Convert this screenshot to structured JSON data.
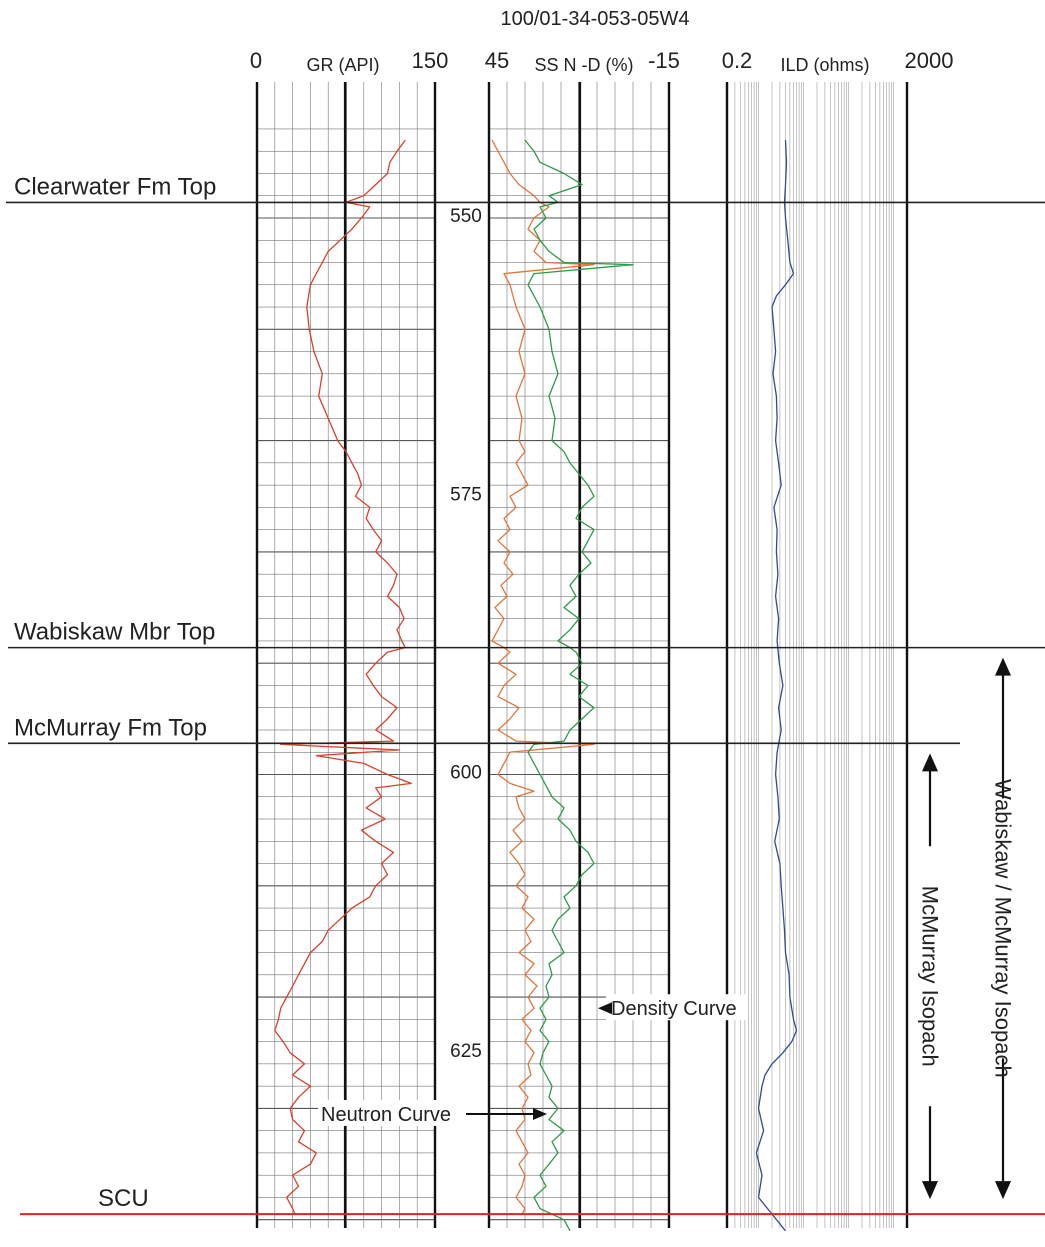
{
  "chart_data": {
    "type": "line",
    "title": "100/01-34-053-05W4",
    "depth_ticks": [
      550,
      575,
      600,
      625
    ],
    "depth_range": [
      542,
      644
    ],
    "tracks": {
      "gr": {
        "label": "GR (API)",
        "scale_min_label": "0",
        "scale_max_label": "150",
        "range": [
          0,
          150
        ]
      },
      "porosity": {
        "label": "SS N -D (%)",
        "scale_left_label": "45",
        "scale_right_label": "-15",
        "range": [
          45,
          -15
        ]
      },
      "resistivity": {
        "label": "ILD (ohms)",
        "scale_min_label": "0.2",
        "scale_max_label": "2000",
        "range": [
          0.2,
          2000
        ],
        "scale": "log"
      }
    },
    "formation_tops": [
      {
        "label": "Clearwater Fm Top",
        "depth": 548.6
      },
      {
        "label": "Wabiskaw Mbr Top",
        "depth": 588.6
      },
      {
        "label": "McMurray Fm Top",
        "depth": 597.2
      },
      {
        "label": "SCU",
        "depth": 639.5
      }
    ],
    "isopachs": [
      {
        "label": "McMurray Isopach",
        "from_depth": 597.2,
        "to_depth": 639.5
      },
      {
        "label": "Wabiskaw / McMurray Isopach",
        "from_depth": 588.6,
        "to_depth": 639.5
      }
    ],
    "annotations": [
      {
        "label": "Density Curve",
        "depth": 621,
        "value": 10
      },
      {
        "label": "Neutron Curve",
        "depth": 630.5,
        "value": 25
      }
    ],
    "series": [
      {
        "name": "GR",
        "track": "gr",
        "color": "#d9412b",
        "depth": [
          543,
          544,
          545,
          546,
          547,
          548,
          548.6,
          549,
          550,
          551,
          552,
          553,
          554,
          555,
          556,
          558,
          560,
          562,
          564,
          566,
          568,
          570,
          571,
          572,
          573,
          574,
          575,
          576,
          577,
          578,
          579,
          580,
          581,
          582,
          583,
          584,
          585,
          586,
          587,
          588,
          588.6,
          589,
          590,
          591,
          592,
          593,
          594,
          595,
          596,
          597,
          597.3,
          597.8,
          598.3,
          599,
          600,
          600.8,
          601.2,
          602,
          603,
          604,
          605,
          606,
          607,
          608,
          609,
          610,
          611,
          612,
          613,
          614,
          615,
          616,
          617,
          618,
          619,
          620,
          621,
          622,
          623,
          624,
          625,
          626,
          627,
          628,
          629,
          630,
          631,
          632,
          633,
          634,
          635,
          636,
          637,
          638,
          639,
          639.5
        ],
        "values": [
          125,
          118,
          112,
          110,
          100,
          90,
          75,
          95,
          88,
          80,
          70,
          60,
          55,
          50,
          45,
          42,
          44,
          48,
          55,
          52,
          60,
          68,
          75,
          80,
          85,
          88,
          83,
          95,
          92,
          98,
          105,
          100,
          110,
          118,
          115,
          110,
          120,
          124,
          118,
          122,
          125,
          110,
          100,
          92,
          98,
          105,
          118,
          110,
          100,
          115,
          20,
          120,
          50,
          90,
          110,
          130,
          100,
          105,
          92,
          108,
          88,
          100,
          115,
          105,
          110,
          100,
          95,
          80,
          70,
          60,
          55,
          45,
          40,
          35,
          30,
          25,
          20,
          18,
          15,
          22,
          28,
          40,
          30,
          45,
          35,
          28,
          30,
          40,
          35,
          50,
          45,
          30,
          35,
          25,
          30,
          32
        ]
      },
      {
        "name": "Neutron",
        "track": "porosity",
        "color": "#e3753a",
        "depth": [
          543,
          544,
          545,
          546,
          547,
          548,
          548.6,
          549,
          550,
          551,
          552,
          553,
          554,
          554.2,
          555,
          556,
          558,
          560,
          562,
          564,
          566,
          568,
          570,
          571,
          572,
          573,
          574,
          575,
          576,
          577,
          578,
          579,
          580,
          581,
          582,
          583,
          584,
          585,
          586,
          587,
          588,
          588.6,
          589,
          590,
          591,
          592,
          593,
          594,
          595,
          596,
          597,
          597.3,
          598,
          599,
          600,
          600.8,
          601.5,
          602,
          603,
          604,
          605,
          606,
          607,
          608,
          609,
          610,
          611,
          612,
          613,
          614,
          615,
          616,
          617,
          618,
          619,
          620,
          621,
          622,
          623,
          624,
          625,
          626,
          627,
          628,
          629,
          630,
          631,
          632,
          633,
          634,
          635,
          636,
          637,
          638,
          639,
          639.5
        ],
        "values": [
          44,
          42,
          40,
          38,
          35,
          30,
          28,
          25,
          30,
          32,
          28,
          30,
          26,
          10,
          40,
          38,
          36,
          33,
          35,
          33,
          36,
          34,
          35,
          33,
          36,
          34,
          32,
          38,
          36,
          40,
          38,
          42,
          38,
          40,
          37,
          41,
          39,
          43,
          40,
          42,
          44,
          40,
          38,
          42,
          36,
          40,
          42,
          35,
          38,
          42,
          36,
          10,
          38,
          40,
          42,
          38,
          30,
          36,
          35,
          33,
          37,
          34,
          38,
          35,
          33,
          36,
          32,
          34,
          30,
          33,
          31,
          35,
          30,
          33,
          29,
          32,
          30,
          34,
          31,
          33,
          30,
          32,
          31,
          35,
          32,
          34,
          33,
          36,
          34,
          32,
          35,
          33,
          34,
          36,
          33,
          34
        ]
      },
      {
        "name": "Density",
        "track": "porosity",
        "color": "#2e9b48",
        "depth": [
          543,
          544,
          545,
          546,
          547,
          548,
          548.6,
          549,
          550,
          551,
          552,
          553,
          554,
          554.2,
          555,
          556,
          558,
          560,
          562,
          564,
          566,
          568,
          570,
          571,
          572,
          573,
          574,
          575,
          576,
          577,
          578,
          579,
          580,
          581,
          582,
          583,
          584,
          585,
          586,
          587,
          588,
          588.6,
          589,
          590,
          591,
          592,
          593,
          594,
          595,
          596,
          597,
          597.3,
          598,
          599,
          600,
          601,
          602,
          603,
          604,
          605,
          606,
          607,
          608,
          609,
          610,
          611,
          612,
          613,
          614,
          615,
          616,
          617,
          618,
          619,
          620,
          621,
          622,
          623,
          624,
          625,
          626,
          627,
          628,
          629,
          630,
          631,
          632,
          633,
          634,
          635,
          636,
          637,
          638,
          639,
          640,
          641
        ],
        "values": [
          33,
          30,
          28,
          20,
          14,
          25,
          22,
          28,
          26,
          30,
          28,
          25,
          20,
          -3,
          30,
          32,
          28,
          25,
          24,
          22,
          25,
          23,
          24,
          20,
          18,
          15,
          12,
          10,
          14,
          16,
          10,
          12,
          14,
          11,
          15,
          18,
          16,
          20,
          15,
          18,
          22,
          18,
          16,
          14,
          18,
          12,
          15,
          10,
          14,
          18,
          20,
          30,
          32,
          30,
          28,
          26,
          24,
          20,
          22,
          18,
          16,
          12,
          10,
          14,
          16,
          20,
          18,
          22,
          24,
          22,
          20,
          25,
          24,
          26,
          25,
          28,
          26,
          28,
          25,
          27,
          28,
          26,
          24,
          25,
          22,
          25,
          20,
          24,
          22,
          25,
          28,
          26,
          30,
          28,
          20,
          18
        ]
      },
      {
        "name": "ILD",
        "track": "resistivity",
        "color": "#2f4c9a",
        "depth": [
          543,
          545,
          547,
          548.6,
          550,
          552,
          554,
          555,
          556,
          557,
          558,
          560,
          562,
          564,
          566,
          568,
          570,
          572,
          574,
          576,
          578,
          580,
          582,
          584,
          586,
          588,
          590,
          592,
          594,
          596,
          598,
          600,
          602,
          604,
          606,
          608,
          610,
          612,
          614,
          616,
          618,
          620,
          622,
          623,
          624,
          625,
          626,
          627,
          628,
          630,
          632,
          634,
          636,
          638,
          639.5,
          641
        ],
        "values": [
          4,
          4.2,
          4,
          3.8,
          4,
          4.5,
          5,
          6,
          4,
          2.5,
          2,
          2.2,
          2.4,
          2.1,
          2.5,
          2.6,
          2.4,
          2.8,
          3.2,
          2.2,
          2.6,
          2.5,
          2.7,
          2.4,
          2.8,
          2.6,
          2.9,
          3.5,
          2.8,
          3.2,
          2.6,
          2.4,
          2.7,
          2.9,
          2.3,
          3,
          3.2,
          3.5,
          3.8,
          4,
          4.8,
          5,
          6,
          7,
          5.5,
          3.5,
          2,
          1.4,
          1.2,
          1,
          1.3,
          0.9,
          1.2,
          1,
          2,
          4
        ]
      }
    ]
  }
}
